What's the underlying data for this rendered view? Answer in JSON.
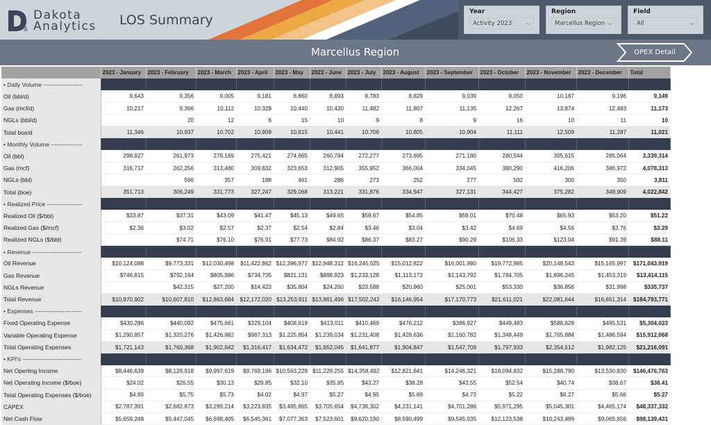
{
  "header": {
    "logo_line1": "Dakota",
    "logo_line2": "Analytics",
    "title": "LOS Summary",
    "region_title": "Marcellus Region",
    "opex_button": "OPEX Detail"
  },
  "slicers": [
    {
      "label": "Year",
      "value": "Activity 2023"
    },
    {
      "label": "Region",
      "value": "Marcellus Region"
    },
    {
      "label": "Field",
      "value": "All"
    }
  ],
  "colors": {
    "banner": "#6b7686",
    "section": "#343d4d",
    "stripe1": "#e2733a",
    "stripe2": "#eda844",
    "stripe3": "#f1c386"
  },
  "table": {
    "columns": [
      "2023 - January",
      "2023 - February",
      "2023 - March",
      "2023 - April",
      "2023 - May",
      "2023 - June",
      "2023 - July",
      "2023 - August",
      "2023 - September",
      "2023 - October",
      "2023 - November",
      "2023 - December",
      "Total"
    ],
    "rows": [
      {
        "type": "sec",
        "label": "• Daily Volume --------------------"
      },
      {
        "type": "data",
        "label": "Oil (bbl/d)",
        "v": [
          "9,643",
          "9,356",
          "9,005",
          "9,181",
          "8,860",
          "8,693",
          "8,783",
          "8,829",
          "9,039",
          "9,050",
          "10,187",
          "9,196",
          "9,149"
        ]
      },
      {
        "type": "data",
        "label": "Gas (mcf/d)",
        "v": [
          "10,217",
          "9,366",
          "10,112",
          "10,328",
          "10,440",
          "10,430",
          "11,482",
          "11,807",
          "11,135",
          "12,267",
          "13,874",
          "12,483",
          "11,173"
        ]
      },
      {
        "type": "data",
        "label": "NGLs (bbl/d)",
        "v": [
          "",
          "20",
          "12",
          "6",
          "15",
          "10",
          "9",
          "8",
          "9",
          "16",
          "10",
          "11",
          "10"
        ]
      },
      {
        "type": "tot",
        "label": "Total boe/d",
        "v": [
          "11,346",
          "10,937",
          "10,702",
          "10,908",
          "10,615",
          "10,441",
          "10,706",
          "10,805",
          "10,904",
          "11,111",
          "12,509",
          "11,287",
          "11,021"
        ]
      },
      {
        "type": "sec",
        "label": "• Monthly Volume ----------------"
      },
      {
        "type": "data",
        "label": "Oil (bbl)",
        "v": [
          "298,927",
          "261,973",
          "279,169",
          "275,421",
          "274,665",
          "260,784",
          "272,277",
          "273,695",
          "271,180",
          "280,544",
          "305,615",
          "285,064",
          "3,339,314"
        ]
      },
      {
        "type": "data",
        "label": "Gas (mcf)",
        "v": [
          "316,717",
          "262,256",
          "313,480",
          "309,832",
          "323,653",
          "312,905",
          "355,952",
          "366,004",
          "334,045",
          "380,290",
          "416,206",
          "386,972",
          "4,078,313"
        ]
      },
      {
        "type": "data",
        "label": "NGLs (bbl)",
        "v": [
          "",
          "566",
          "357",
          "188",
          "461",
          "286",
          "273",
          "252",
          "277",
          "502",
          "300",
          "350",
          "3,811"
        ]
      },
      {
        "type": "tot",
        "label": "Total (boe)",
        "v": [
          "351,713",
          "306,249",
          "331,773",
          "327,247",
          "329,068",
          "313,221",
          "331,876",
          "334,947",
          "327,131",
          "344,427",
          "375,282",
          "349,909",
          "4,022,842"
        ]
      },
      {
        "type": "sec",
        "label": "• Realized Price ------------------"
      },
      {
        "type": "data",
        "label": "Realized Oil ($/bbl)",
        "v": [
          "$33.87",
          "$37.31",
          "$43.09",
          "$41.47",
          "$45.13",
          "$49.65",
          "$59.67",
          "$54.85",
          "$59.01",
          "$70.48",
          "$65.93",
          "$53.20",
          "$51.22"
        ]
      },
      {
        "type": "data",
        "label": "Realized Gas ($/mcf)",
        "v": [
          "$2.36",
          "$3.02",
          "$2.57",
          "$2.37",
          "$2.54",
          "$2.84",
          "$3.46",
          "$3.04",
          "$3.42",
          "$4.69",
          "$4.56",
          "$3.76",
          "$3.29"
        ]
      },
      {
        "type": "data",
        "label": "Realized NGLs ($/bbl)",
        "v": [
          "",
          "$74.71",
          "$76.10",
          "$76.91",
          "$77.73",
          "$84.92",
          "$86.37",
          "$83.27",
          "$90.29",
          "$106.33",
          "$123.04",
          "$91.39",
          "$88.11"
        ]
      },
      {
        "type": "sec",
        "label": "• Revenue -------------------------"
      },
      {
        "type": "data",
        "label": "Oil Revenue",
        "v": [
          "$10,124,088",
          "$9,773,331",
          "$12,030,498",
          "$11,422,862",
          "$12,396,977",
          "$12,948,312",
          "$16,245,525",
          "$15,012,822",
          "$16,001,980",
          "$19,772,985",
          "$20,148,543",
          "$15,165,997",
          "$171,043,919"
        ]
      },
      {
        "type": "data",
        "label": "Gas Revenue",
        "v": [
          "$746,815",
          "$792,164",
          "$805,986",
          "$734,735",
          "$821,131",
          "$888,923",
          "$1,233,128",
          "$1,113,172",
          "$1,143,792",
          "$1,784,705",
          "$1,896,245",
          "$1,453,319",
          "$13,414,115"
        ]
      },
      {
        "type": "data",
        "label": "NGLs Revenue",
        "v": [
          "",
          "$42,315",
          "$27,200",
          "$14,423",
          "$35,804",
          "$24,260",
          "$23,588",
          "$20,960",
          "$25,001",
          "$53,330",
          "$36,856",
          "$31,998",
          "$335,737"
        ]
      },
      {
        "type": "tot",
        "label": "Total Revenue",
        "v": [
          "$10,870,902",
          "$10,607,810",
          "$12,863,684",
          "$12,172,020",
          "$13,253,911",
          "$13,861,496",
          "$17,502,242",
          "$16,146,954",
          "$17,170,773",
          "$21,611,021",
          "$22,081,644",
          "$16,651,314",
          "$184,793,771"
        ]
      },
      {
        "type": "sec",
        "label": "• Expenses ------------------------"
      },
      {
        "type": "data",
        "label": "Fixed Operating Expense",
        "v": [
          "$430,286",
          "$440,092",
          "$475,661",
          "$329,104",
          "$408,618",
          "$413,011",
          "$410,469",
          "$476,212",
          "$386,927",
          "$449,483",
          "$588,628",
          "$495,531",
          "$5,304,023"
        ]
      },
      {
        "type": "data",
        "label": "Variable Operating Expense",
        "v": [
          "$1,290,857",
          "$1,320,276",
          "$1,426,982",
          "$987,313",
          "$1,225,854",
          "$1,239,034",
          "$1,231,408",
          "$1,428,636",
          "$1,160,782",
          "$1,348,449",
          "$1,765,884",
          "$1,486,594",
          "$15,912,068"
        ]
      },
      {
        "type": "tot",
        "label": "Total Operating Expenses",
        "v": [
          "$1,721,143",
          "$1,760,368",
          "$1,902,642",
          "$1,316,417",
          "$1,634,472",
          "$1,652,045",
          "$1,641,877",
          "$1,904,847",
          "$1,547,709",
          "$1,797,933",
          "$2,354,512",
          "$1,982,125",
          "$21,216,091"
        ]
      },
      {
        "type": "sec",
        "label": "• KPI's ------------------------------"
      },
      {
        "type": "data",
        "label": "Net Operting Income",
        "v": [
          "$8,446,639",
          "$8,129,918",
          "$9,997,619",
          "$9,769,196",
          "$10,563,229",
          "$11,229,255",
          "$14,358,492",
          "$12,821,641",
          "$14,246,321",
          "$18,094,832",
          "$15,288,790",
          "$13,530,830",
          "$146,476,763"
        ]
      },
      {
        "type": "data",
        "label": "Net Operating Income ($/boe)",
        "v": [
          "$24.02",
          "$26.55",
          "$30.13",
          "$29.85",
          "$32.10",
          "$35.85",
          "$43.27",
          "$38.28",
          "$43.55",
          "$52.54",
          "$40.74",
          "$38.67",
          "$36.41"
        ]
      },
      {
        "type": "data",
        "label": "Total Operating Expenses ($/boe)",
        "v": [
          "$4.89",
          "$5.75",
          "$5.73",
          "$4.02",
          "$4.97",
          "$5.27",
          "$4.95",
          "$5.69",
          "$4.73",
          "$5.22",
          "$6.27",
          "$5.66",
          "$5.27"
        ]
      },
      {
        "type": "data",
        "label": "CAPEX",
        "v": [
          "$2,787,391",
          "$2,682,873",
          "$3,299,214",
          "$3,223,835",
          "$3,485,865",
          "$3,705,654",
          "$4,738,302",
          "$4,231,141",
          "$4,701,286",
          "$5,971,295",
          "$5,045,301",
          "$4,465,174",
          "$48,337,332"
        ]
      },
      {
        "type": "data",
        "label": "Net Cash Flow",
        "v": [
          "$5,659,248",
          "$5,447,045",
          "$6,698,405",
          "$6,545,361",
          "$7,077,363",
          "$7,523,601",
          "$9,620,190",
          "$8,590,499",
          "$9,545,035",
          "$12,123,538",
          "$10,243,489",
          "$9,065,656",
          "$98,139,431"
        ]
      }
    ]
  }
}
